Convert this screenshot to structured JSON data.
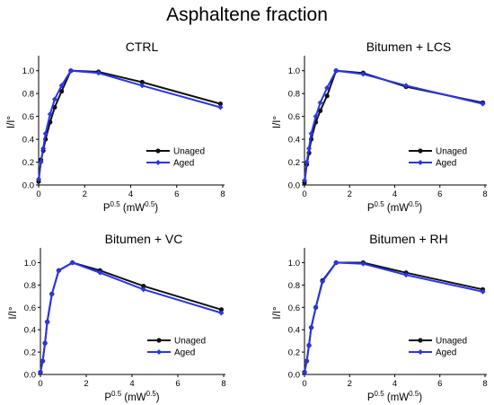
{
  "figure": {
    "title": "Asphaltene fraction"
  },
  "colors": {
    "unaged": "#111111",
    "aged": "#2b35e6"
  },
  "chart_data": [
    {
      "type": "line",
      "title": "CTRL",
      "xlabel": "P0.5 (mW0.5)",
      "xlabel_parts": {
        "base": "P",
        "sup1": "0.5",
        "mid": " (mW",
        "sup2": "0.5",
        "end": ")"
      },
      "ylabel": "I/I°",
      "xlim": [
        0,
        8
      ],
      "ylim": [
        0,
        1.1
      ],
      "xticks": [
        "0",
        "2",
        "4",
        "6",
        "8"
      ],
      "yticks": [
        "0.0",
        "0.2",
        "0.4",
        "0.6",
        "0.8",
        "1.0"
      ],
      "legend": "bottom-right",
      "series": [
        {
          "name": "Unaged",
          "x": [
            0,
            0.1,
            0.2,
            0.3,
            0.5,
            0.7,
            1.0,
            1.4,
            2.6,
            4.5,
            7.9
          ],
          "y": [
            0.03,
            0.22,
            0.3,
            0.4,
            0.55,
            0.68,
            0.82,
            1.0,
            0.99,
            0.9,
            0.71
          ]
        },
        {
          "name": "Aged",
          "x": [
            0,
            0.1,
            0.2,
            0.3,
            0.5,
            0.7,
            1.0,
            1.4,
            2.6,
            4.5,
            7.9
          ],
          "y": [
            0.05,
            0.2,
            0.32,
            0.45,
            0.62,
            0.75,
            0.87,
            1.0,
            0.98,
            0.87,
            0.68
          ]
        }
      ]
    },
    {
      "type": "line",
      "title": "Bitumen + LCS",
      "xlabel": "P0.5 (mW0.5)",
      "xlabel_parts": {
        "base": "P",
        "sup1": "0.5",
        "mid": " (mW",
        "sup2": "0.5",
        "end": ")"
      },
      "ylabel": "I/I°",
      "xlim": [
        0,
        8
      ],
      "ylim": [
        0,
        1.1
      ],
      "xticks": [
        "0",
        "2",
        "4",
        "6",
        "8"
      ],
      "yticks": [
        "0.0",
        "0.2",
        "0.4",
        "0.6",
        "0.8",
        "1.0"
      ],
      "legend": "bottom-right",
      "series": [
        {
          "name": "Unaged",
          "x": [
            0,
            0.1,
            0.2,
            0.3,
            0.5,
            0.7,
            1.0,
            1.4,
            2.6,
            4.5,
            7.9
          ],
          "y": [
            0.02,
            0.18,
            0.28,
            0.4,
            0.55,
            0.65,
            0.78,
            1.0,
            0.98,
            0.86,
            0.72
          ]
        },
        {
          "name": "Aged",
          "x": [
            0,
            0.1,
            0.2,
            0.3,
            0.5,
            0.7,
            1.0,
            1.4,
            2.6,
            4.5,
            7.9
          ],
          "y": [
            0.04,
            0.2,
            0.32,
            0.45,
            0.6,
            0.72,
            0.85,
            1.0,
            0.97,
            0.87,
            0.71
          ]
        }
      ]
    },
    {
      "type": "line",
      "title": "Bitumen + VC",
      "xlabel": "P0.5 (mW0.5)",
      "xlabel_parts": {
        "base": "P",
        "sup1": "0.5",
        "mid": " (mW",
        "sup2": "0.5",
        "end": ")"
      },
      "ylabel": "I/I°",
      "xlim": [
        0,
        8
      ],
      "ylim": [
        0,
        1.1
      ],
      "xticks": [
        "0",
        "2",
        "4",
        "6",
        "8"
      ],
      "yticks": [
        "0.0",
        "0.2",
        "0.4",
        "0.6",
        "0.8",
        "1.0"
      ],
      "legend": "bottom-right",
      "series": [
        {
          "name": "Unaged",
          "x": [
            0,
            0.1,
            0.2,
            0.3,
            0.5,
            0.8,
            1.4,
            2.6,
            4.5,
            7.9
          ],
          "y": [
            0.02,
            0.12,
            0.28,
            0.47,
            0.72,
            0.93,
            1.0,
            0.93,
            0.79,
            0.58
          ]
        },
        {
          "name": "Aged",
          "x": [
            0,
            0.1,
            0.2,
            0.3,
            0.5,
            0.8,
            1.4,
            2.6,
            4.5,
            7.9
          ],
          "y": [
            0.02,
            0.12,
            0.28,
            0.47,
            0.72,
            0.93,
            1.0,
            0.91,
            0.76,
            0.55
          ]
        }
      ]
    },
    {
      "type": "line",
      "title": "Bitumen + RH",
      "xlabel": "P0.5 (mW0.5)",
      "xlabel_parts": {
        "base": "P",
        "sup1": "0.5",
        "mid": " (mW",
        "sup2": "0.5",
        "end": ")"
      },
      "ylabel": "I/I°",
      "xlim": [
        0,
        8
      ],
      "ylim": [
        0,
        1.1
      ],
      "xticks": [
        "0",
        "2",
        "4",
        "6",
        "8"
      ],
      "yticks": [
        "0.0",
        "0.2",
        "0.4",
        "0.6",
        "0.8",
        "1.0"
      ],
      "legend": "bottom-right",
      "series": [
        {
          "name": "Unaged",
          "x": [
            0,
            0.1,
            0.2,
            0.3,
            0.5,
            0.8,
            1.4,
            2.6,
            4.5,
            7.9
          ],
          "y": [
            0.02,
            0.12,
            0.26,
            0.42,
            0.6,
            0.84,
            1.0,
            1.0,
            0.91,
            0.76
          ]
        },
        {
          "name": "Aged",
          "x": [
            0,
            0.1,
            0.2,
            0.3,
            0.5,
            0.8,
            1.4,
            2.6,
            4.5,
            7.9
          ],
          "y": [
            0.02,
            0.12,
            0.26,
            0.42,
            0.6,
            0.83,
            1.0,
            0.99,
            0.89,
            0.74
          ]
        }
      ]
    }
  ]
}
